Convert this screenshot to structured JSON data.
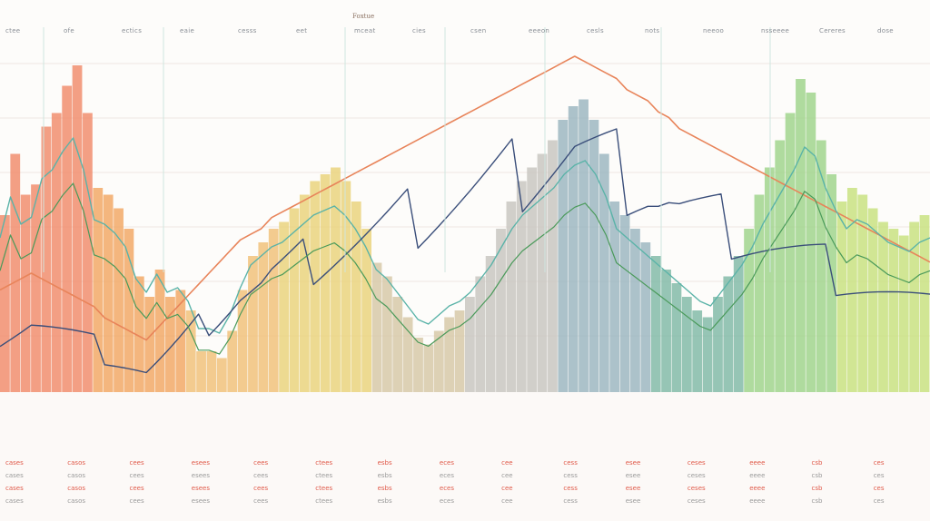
{
  "chart_data": {
    "type": "bar",
    "title": "Foxtue",
    "top_labels": [
      "ctee",
      "ofe",
      "ectics",
      "eaie",
      "cesss",
      "eet",
      "mceat",
      "cies",
      "csen",
      "eeeon",
      "cesls",
      "nots",
      "neeoo",
      "nsseeee",
      "Cereres",
      "dose"
    ],
    "colors": {
      "bars": [
        "#f08a6a",
        "#f2a663",
        "#f0c078",
        "#e9d27a",
        "#d6c7a6",
        "#c7c4c0",
        "#9ab4bf",
        "#7fb8a6",
        "#9ed38a",
        "#c7e07e"
      ],
      "line_orange": "#e8845a",
      "line_teal": "#5ab3a8",
      "line_navy": "#3a4e7a",
      "line_green": "#4a9a5a"
    },
    "series": [
      {
        "values": [
          52,
          70,
          58,
          61,
          78,
          82,
          90,
          96,
          82,
          60,
          58,
          54,
          48,
          34,
          28,
          36,
          28,
          30,
          24,
          12,
          12,
          10,
          18,
          30,
          40,
          44,
          48,
          50,
          54,
          58,
          62,
          64,
          66,
          62,
          56,
          48,
          38,
          34,
          28,
          22,
          16,
          14,
          18,
          22,
          24,
          28,
          34,
          40,
          48,
          56,
          62,
          66,
          70,
          74,
          80,
          84,
          86,
          80,
          70,
          56,
          52,
          48,
          44,
          40,
          36,
          32,
          28,
          24,
          22,
          28,
          34,
          40,
          48,
          58,
          66,
          74,
          82,
          92,
          88,
          74,
          64,
          56,
          60,
          58,
          54,
          50,
          48,
          46,
          50,
          52
        ]
      },
      {
        "values": [
          40,
          42,
          44,
          46,
          44,
          42,
          40,
          38,
          36,
          34,
          30,
          28,
          26,
          24,
          22,
          26,
          30,
          34,
          38,
          42,
          46,
          50,
          54,
          58,
          60,
          62,
          66,
          68,
          70,
          72,
          74,
          76,
          78,
          80,
          82,
          84,
          86,
          88,
          90,
          92,
          94,
          96,
          98,
          100,
          102,
          104,
          106,
          108,
          110,
          112,
          114,
          116,
          118,
          120,
          122,
          124,
          122,
          120,
          118,
          116,
          112,
          110,
          108,
          104,
          102,
          98,
          96,
          94,
          92,
          90,
          88,
          86,
          84,
          82,
          80,
          78,
          76,
          74,
          72,
          70,
          68,
          66,
          64,
          62,
          60,
          58,
          56,
          54,
          52,
          50
        ]
      }
    ],
    "bottom_labels": [
      "cases",
      "casos",
      "cees",
      "esees",
      "cees",
      "ctees",
      "esbs",
      "eces",
      "cee",
      "cess",
      "esee",
      "ceses",
      "eeee",
      "csb",
      "ces"
    ]
  }
}
